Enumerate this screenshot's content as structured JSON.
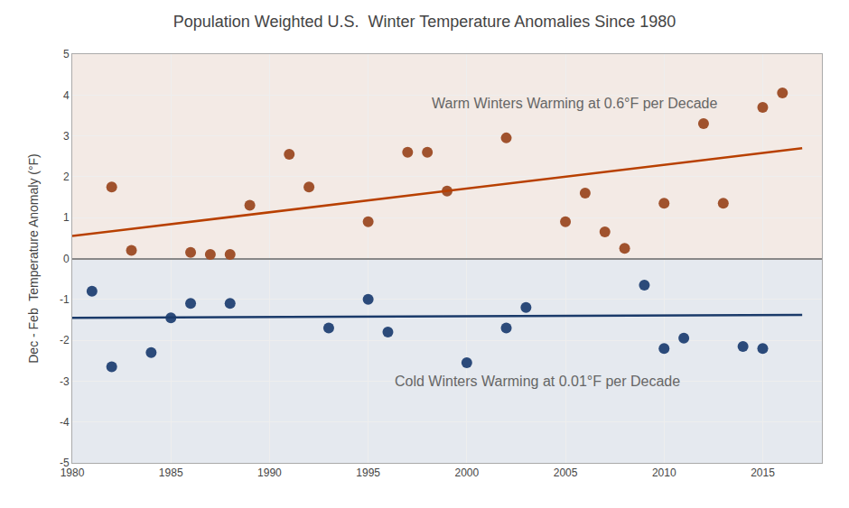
{
  "chart_data": {
    "type": "scatter",
    "title": "Population Weighted U.S.  Winter Temperature Anomalies Since 1980",
    "y_label": "Dec - Feb  Temperature Anomaly (°F)",
    "series": [
      {
        "type": "scatter",
        "marker": "circle",
        "color": "#a0522d",
        "x": [
          1982,
          1983,
          1986,
          1987,
          1988,
          1989,
          1991,
          1992,
          1995,
          1997,
          1998,
          1999,
          2002,
          2005,
          2006,
          2007,
          2008,
          2010,
          2012,
          2013,
          2015,
          2016
        ],
        "values": [
          1.75,
          0.2,
          0.15,
          0.1,
          0.1,
          1.3,
          2.55,
          1.75,
          0.9,
          2.6,
          2.6,
          1.65,
          2.95,
          0.9,
          1.6,
          0.65,
          0.25,
          1.35,
          3.3,
          1.35,
          3.7,
          4.05
        ]
      },
      {
        "type": "scatter",
        "marker": "circle",
        "color": "#2b4a7a",
        "x": [
          1981,
          1982,
          1984,
          1985,
          1986,
          1988,
          1993,
          1995,
          1996,
          2000,
          2002,
          2003,
          2009,
          2010,
          2011,
          2014,
          2015
        ],
        "values": [
          -0.8,
          -2.65,
          -2.3,
          -1.45,
          -1.1,
          -1.1,
          -1.7,
          -1.0,
          -1.8,
          -2.55,
          -1.7,
          -1.2,
          -0.65,
          -2.2,
          -1.95,
          -2.15,
          -2.2
        ]
      },
      {
        "type": "line",
        "line_style": "solid",
        "color": "#b84000",
        "x": [
          1980,
          2017
        ],
        "values": [
          0.55,
          2.7
        ]
      },
      {
        "type": "line",
        "line_style": "solid",
        "color": "#1a3a6a",
        "x": [
          1980,
          2017
        ],
        "values": [
          -1.45,
          -1.38
        ]
      }
    ],
    "annotations": [
      "Warm Winters Warming at 0.6°F per Decade",
      "Cold Winters Warming at 0.01°F per Decade"
    ],
    "xlim": [
      1980,
      2018
    ],
    "xticks": [
      1980,
      1985,
      1990,
      1995,
      2000,
      2005,
      2010,
      2015
    ],
    "ylim": [
      -5,
      5
    ],
    "yticks": [
      -5,
      -4,
      -3,
      -2,
      -1,
      0,
      1,
      2,
      3,
      4,
      5
    ],
    "grid": true
  }
}
